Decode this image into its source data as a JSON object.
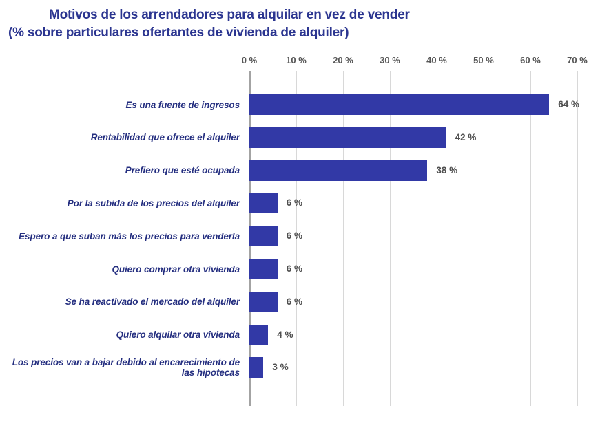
{
  "title": {
    "line1": "Motivos de los arrendadores para alquilar en vez de vender",
    "line2": "(% sobre particulares ofertantes de vivienda de alquiler)"
  },
  "colors": {
    "title_text": "#2b3590",
    "category_text": "#252f80",
    "bar_fill": "#3239a6",
    "value_text": "#4f4f4f",
    "tick_text": "#565656",
    "gridline": "#d8d8d8",
    "axis_line": "#a3a3a3",
    "background": "#ffffff"
  },
  "chart_data": {
    "type": "bar",
    "orientation": "horizontal",
    "title": "Motivos de los arrendadores para alquilar en vez de vender (% sobre particulares ofertantes de vivienda de alquiler)",
    "categories": [
      "Es una fuente de ingresos",
      "Rentabilidad que ofrece el alquiler",
      "Prefiero que esté ocupada",
      "Por la subida de los precios del alquiler",
      "Espero a que suban más los precios para venderla",
      "Quiero comprar otra vivienda",
      "Se ha reactivado el mercado del alquiler",
      "Quiero alquilar otra vivienda",
      "Los precios van a bajar debido al encarecimiento de las hipotecas"
    ],
    "values": [
      64,
      42,
      38,
      6,
      6,
      6,
      6,
      4,
      3
    ],
    "value_labels": [
      "64 %",
      "42 %",
      "38 %",
      "6 %",
      "6 %",
      "6 %",
      "6 %",
      "4 %",
      "3 %"
    ],
    "x_tick_values": [
      0,
      10,
      20,
      30,
      40,
      50,
      60,
      70
    ],
    "x_tick_labels": [
      "0 %",
      "10 %",
      "20 %",
      "30 %",
      "40 %",
      "50 %",
      "60 %",
      "70 %"
    ],
    "xlim": [
      0,
      70
    ],
    "xlabel": "",
    "ylabel": "",
    "grid": true,
    "legend": false
  }
}
